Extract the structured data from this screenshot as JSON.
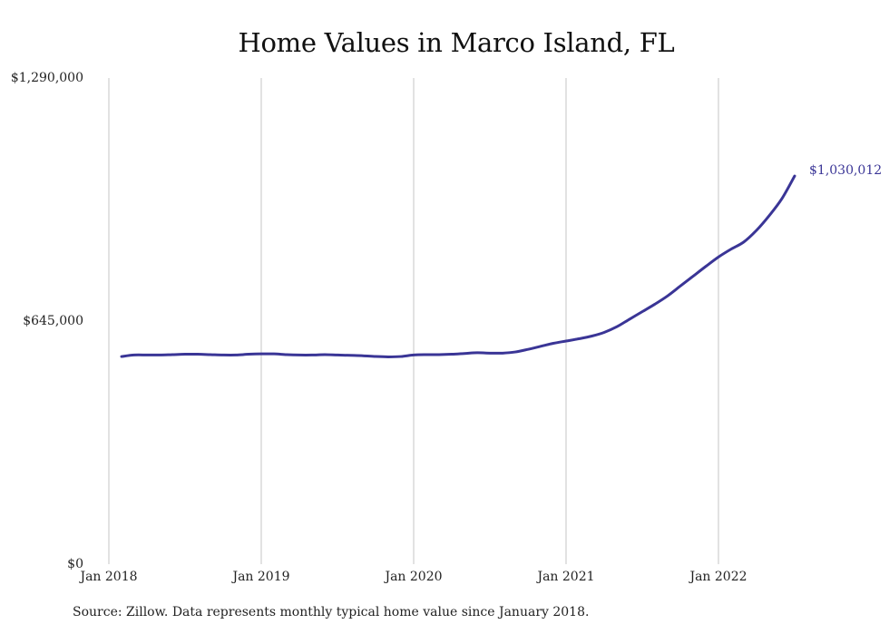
{
  "chart_data": {
    "type": "line",
    "title": "Home Values in Marco Island, FL",
    "source": "Source: Zillow. Data represents monthly typical home value since January 2018.",
    "xlabel": "",
    "ylabel": "",
    "y_ticks": [
      {
        "value": 1290000,
        "label": "$1,290,000"
      },
      {
        "value": 645000,
        "label": "$645,000"
      },
      {
        "value": 0,
        "label": "$0"
      }
    ],
    "x_ticks": [
      {
        "value": "2018-01",
        "label": "Jan 2018"
      },
      {
        "value": "2019-01",
        "label": "Jan 2019"
      },
      {
        "value": "2020-01",
        "label": "Jan 2020"
      },
      {
        "value": "2021-01",
        "label": "Jan 2021"
      },
      {
        "value": "2022-01",
        "label": "Jan 2022"
      }
    ],
    "ylim": [
      0,
      1290000
    ],
    "xlim": [
      "2018-01",
      "2022-07"
    ],
    "grid": "vertical",
    "end_label": "$1,030,012",
    "line_color": "#3a3596",
    "series": [
      {
        "name": "",
        "x": [
          "2018-02",
          "2018-03",
          "2018-04",
          "2018-05",
          "2018-06",
          "2018-07",
          "2018-08",
          "2018-09",
          "2018-10",
          "2018-11",
          "2018-12",
          "2019-01",
          "2019-02",
          "2019-03",
          "2019-04",
          "2019-05",
          "2019-06",
          "2019-07",
          "2019-08",
          "2019-09",
          "2019-10",
          "2019-11",
          "2019-12",
          "2020-01",
          "2020-02",
          "2020-03",
          "2020-04",
          "2020-05",
          "2020-06",
          "2020-07",
          "2020-08",
          "2020-09",
          "2020-10",
          "2020-11",
          "2020-12",
          "2021-01",
          "2021-02",
          "2021-03",
          "2021-04",
          "2021-05",
          "2021-06",
          "2021-07",
          "2021-08",
          "2021-09",
          "2021-10",
          "2021-11",
          "2021-12",
          "2022-01",
          "2022-02",
          "2022-03",
          "2022-04",
          "2022-05",
          "2022-06",
          "2022-07"
        ],
        "values": [
          551000,
          555000,
          555000,
          555000,
          556000,
          557000,
          557000,
          556000,
          555000,
          555000,
          557000,
          558000,
          558000,
          556000,
          555000,
          555000,
          556000,
          555000,
          554000,
          553000,
          551000,
          550000,
          551000,
          555000,
          556000,
          556000,
          557000,
          559000,
          561000,
          560000,
          560000,
          563000,
          570000,
          578000,
          586000,
          592000,
          598000,
          605000,
          615000,
          630000,
          650000,
          670000,
          690000,
          712000,
          738000,
          764000,
          790000,
          815000,
          836000,
          855000,
          886000,
          925000,
          970000,
          1030012
        ]
      }
    ]
  }
}
